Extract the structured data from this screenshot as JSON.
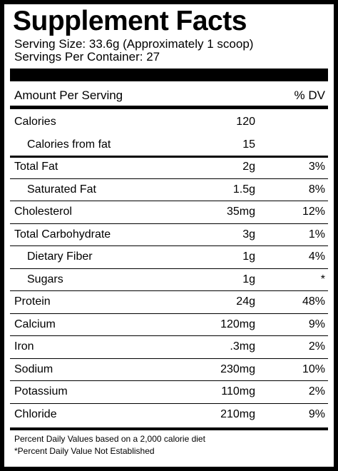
{
  "header": {
    "title": "Supplement Facts",
    "serving_size": "Serving Size: 33.6g (Approximately 1 scoop)",
    "servings_per_container": "Servings Per Container: 27"
  },
  "table": {
    "columns": [
      "Amount Per Serving",
      "% DV"
    ],
    "rows": [
      {
        "name": "Calories",
        "amount": "120"
      },
      {
        "name": "Calories from fat",
        "amount": "15",
        "indent": true
      },
      {
        "name": "Total Fat",
        "amount": "2g",
        "dv": "3%"
      },
      {
        "name": "Saturated Fat",
        "amount": "1.5g",
        "dv": "8%",
        "indent": true
      },
      {
        "name": "Cholesterol",
        "amount": "35mg",
        "dv": "12%"
      },
      {
        "name": "Total Carbohydrate",
        "amount": "3g",
        "dv": "1%"
      },
      {
        "name": "Dietary Fiber",
        "amount": "1g",
        "dv": "4%",
        "indent": true
      },
      {
        "name": "Sugars",
        "amount": "1g",
        "dv": "*",
        "indent": true
      },
      {
        "name": "Protein",
        "amount": "24g",
        "dv": "48%"
      },
      {
        "name": "Calcium",
        "amount": "120mg",
        "dv": "9%"
      },
      {
        "name": "Iron",
        "amount": ".3mg",
        "dv": "2%"
      },
      {
        "name": "Sodium",
        "amount": "230mg",
        "dv": "10%"
      },
      {
        "name": "Potassium",
        "amount": "110mg",
        "dv": "2%"
      },
      {
        "name": "Chloride",
        "amount": "210mg",
        "dv": "9%"
      }
    ]
  },
  "footnotes": [
    "Percent Daily Values based on a 2,000 calorie diet",
    "*Percent Daily Value Not Established"
  ]
}
